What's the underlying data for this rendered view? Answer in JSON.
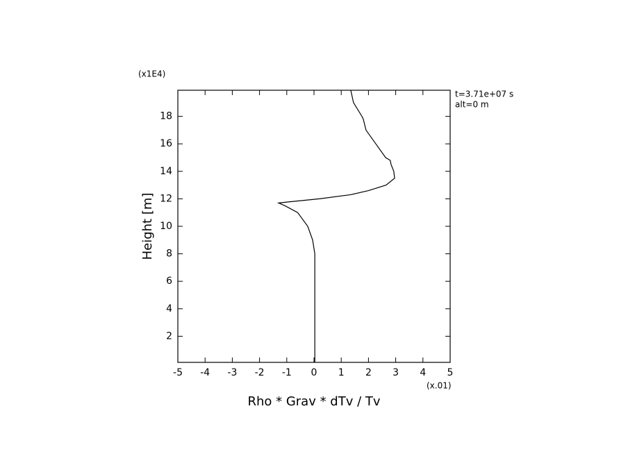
{
  "chart_data": {
    "type": "line",
    "xlabel": "Rho * Grav * dTv / Tv",
    "ylabel": "Height [m]",
    "x_scale_label": "(x.01)",
    "y_scale_label": "(x1E4)",
    "annotations": [
      "t=3.71e+07 s",
      "alt=0 m"
    ],
    "xlim": [
      -5,
      5
    ],
    "ylim": [
      0.1,
      19.9
    ],
    "xticks": [
      -5,
      -4,
      -3,
      -2,
      -1,
      0,
      1,
      2,
      3,
      4,
      5
    ],
    "yticks": [
      2,
      4,
      6,
      8,
      10,
      12,
      14,
      16,
      18
    ],
    "series": [
      {
        "color": "#000000",
        "x": [
          0.03,
          0.03,
          -0.05,
          -0.23,
          -0.6,
          -1.07,
          -1.3,
          -1.07,
          0.2,
          1.35,
          2.0,
          2.65,
          2.96,
          2.93,
          2.83,
          2.8,
          2.63,
          2.27,
          1.91,
          1.81,
          1.76,
          1.45,
          1.35
        ],
        "values": [
          0.1,
          8,
          9,
          10,
          11,
          11.5,
          11.7,
          11.75,
          12,
          12.3,
          12.6,
          13,
          13.5,
          14,
          14.5,
          14.8,
          15,
          16,
          17,
          17.8,
          18,
          19,
          19.9
        ]
      }
    ]
  }
}
